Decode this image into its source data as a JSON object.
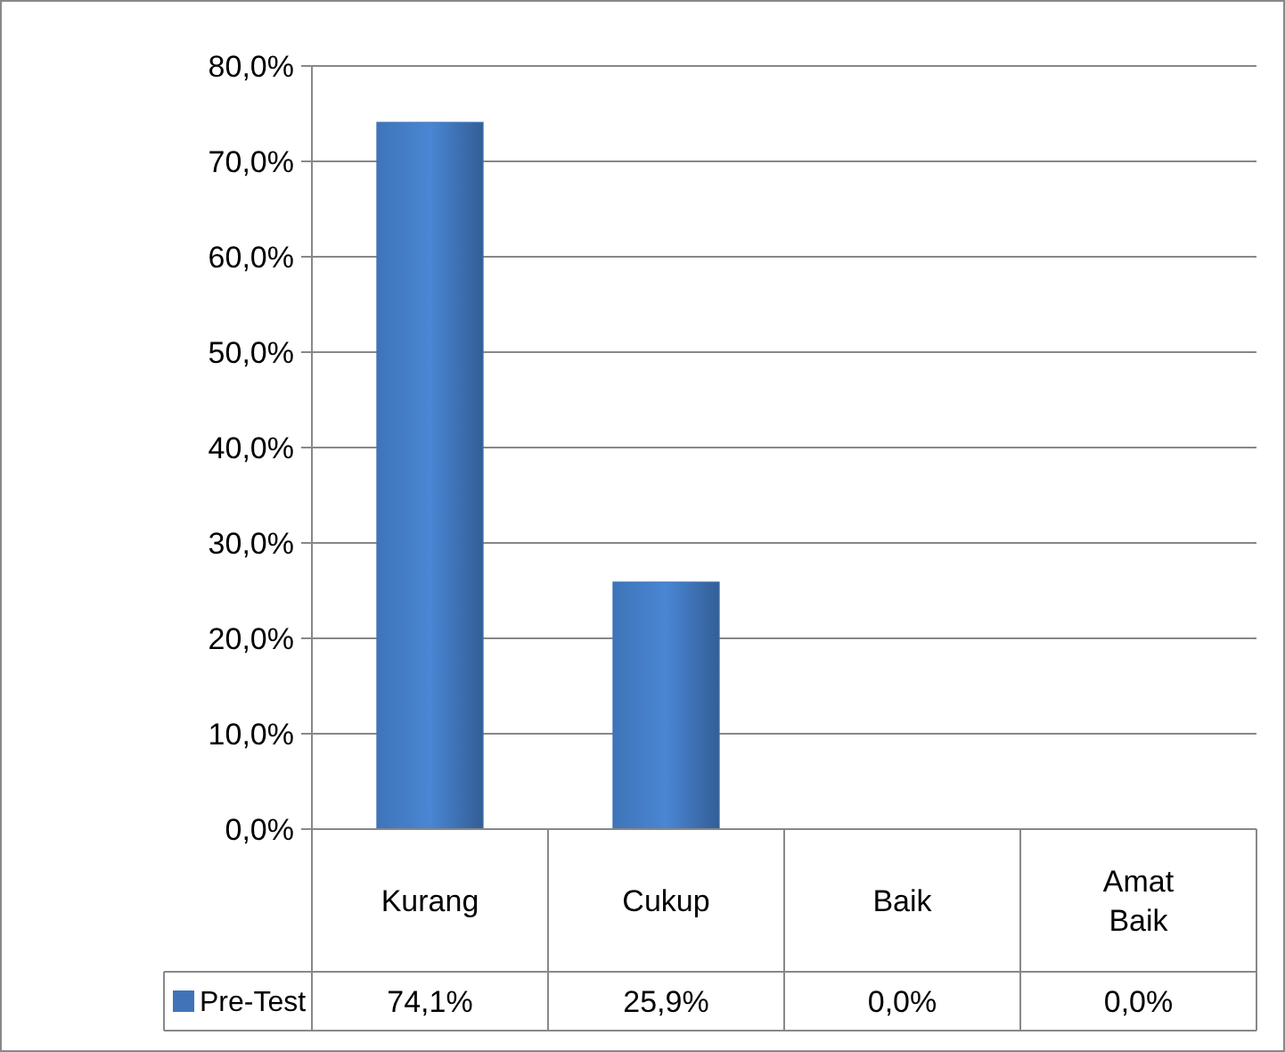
{
  "chart_data": {
    "type": "bar",
    "categories": [
      "Kurang",
      "Cukup",
      "Baik",
      "Amat Baik"
    ],
    "series": [
      {
        "name": "Pre-Test",
        "color": "#3f74b8",
        "values": [
          74.1,
          25.9,
          0,
          0
        ],
        "value_labels": [
          "74,1%",
          "25,9%",
          "0,0%",
          "0,0%"
        ]
      }
    ],
    "ylim": [
      0,
      80
    ],
    "yticks": [
      {
        "value": 0,
        "label": "0,0%"
      },
      {
        "value": 10,
        "label": "10,0%"
      },
      {
        "value": 20,
        "label": "20,0%"
      },
      {
        "value": 30,
        "label": "30,0%"
      },
      {
        "value": 40,
        "label": "40,0%"
      },
      {
        "value": 50,
        "label": "50,0%"
      },
      {
        "value": 60,
        "label": "60,0%"
      },
      {
        "value": 70,
        "label": "70,0%"
      },
      {
        "value": 80,
        "label": "80,0%"
      }
    ],
    "grid": "y"
  }
}
